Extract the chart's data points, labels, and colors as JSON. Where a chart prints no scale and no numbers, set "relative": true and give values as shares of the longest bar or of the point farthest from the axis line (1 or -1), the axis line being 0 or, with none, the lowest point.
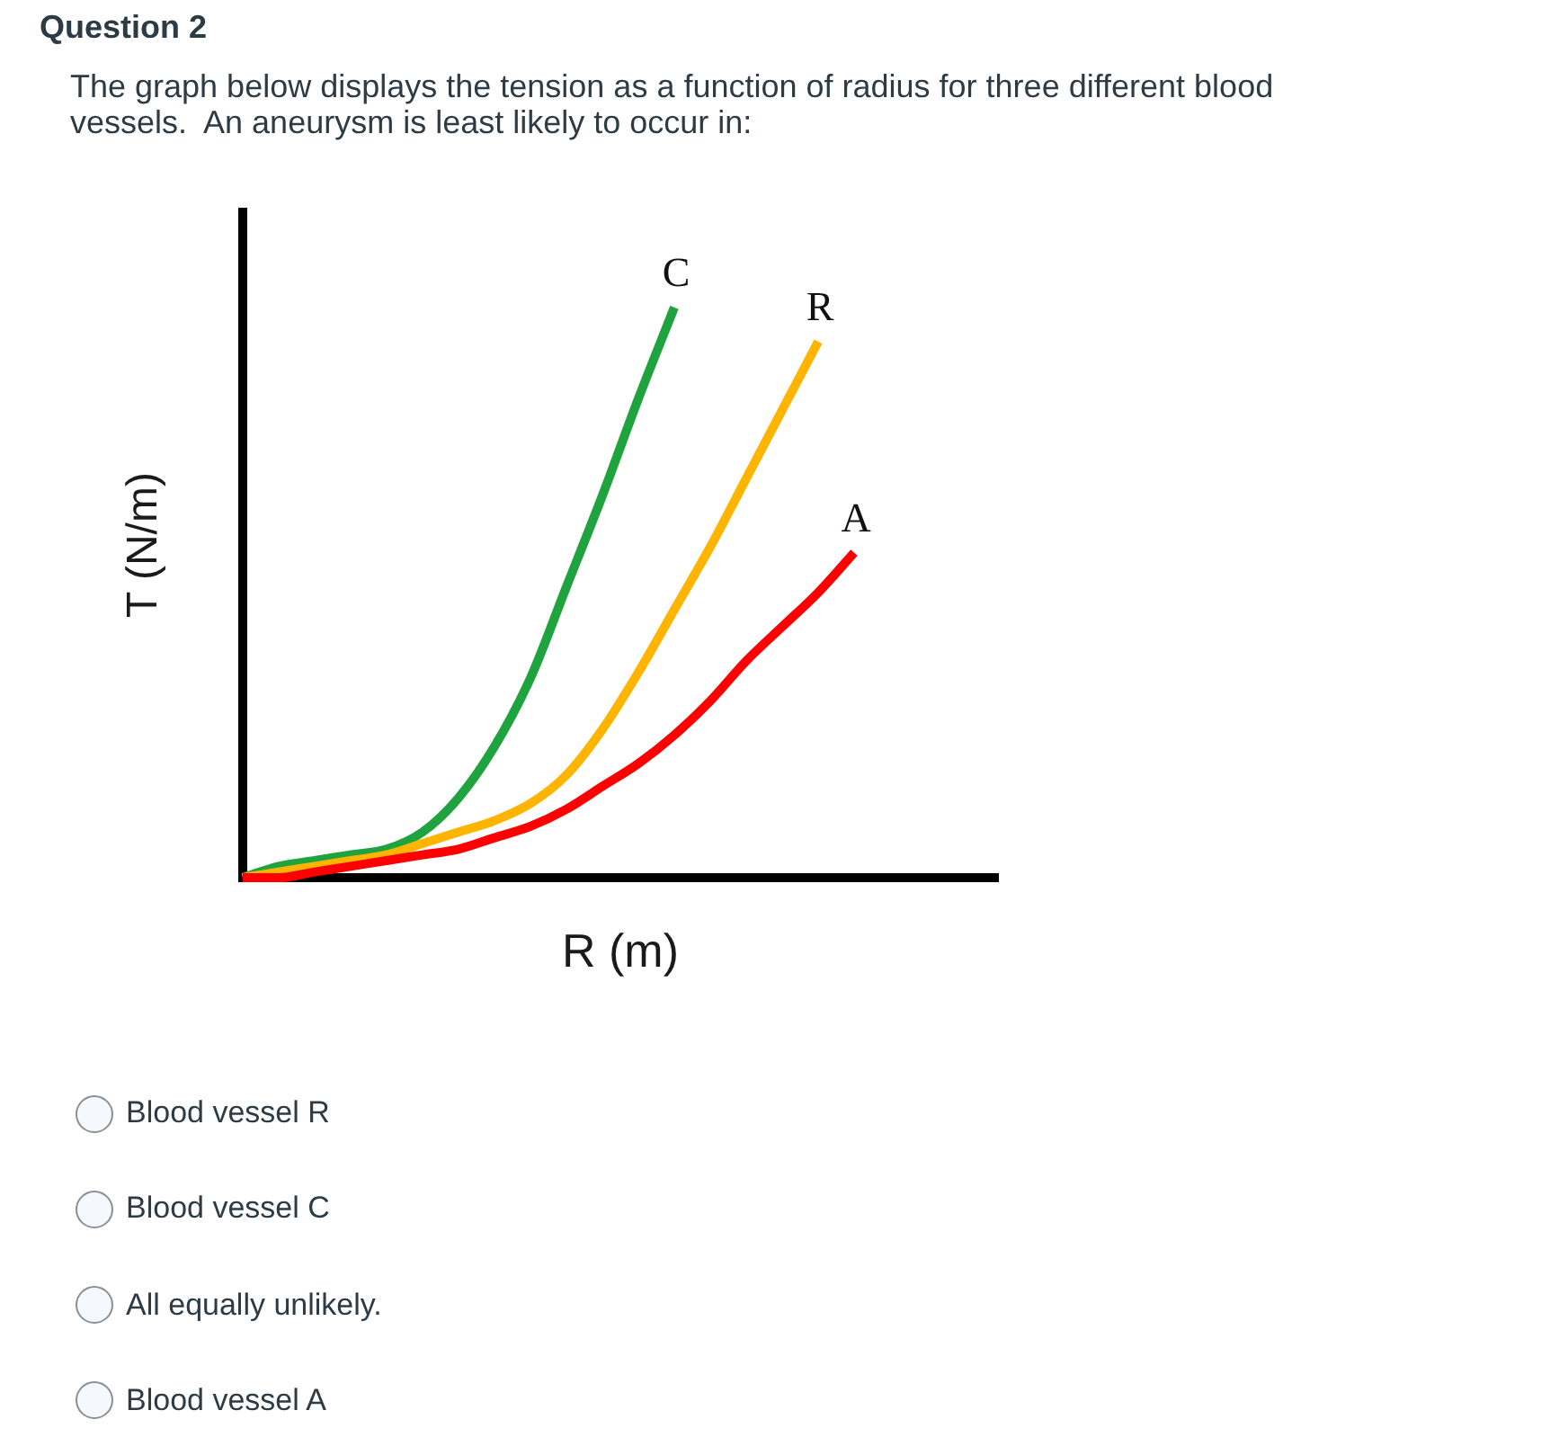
{
  "chart_data": {
    "type": "line",
    "title": "Question 2",
    "subtitle": "The graph below displays the tension as a function of radius for three different blood vessels.  An aneurysm is least likely to occur in:",
    "xlabel": "R (m)",
    "ylabel": "T (N/m)",
    "relative": true,
    "categories": [
      null,
      null,
      null,
      null,
      null,
      null,
      null,
      null,
      null,
      null,
      null,
      null,
      null,
      null,
      null,
      null,
      null,
      null,
      null,
      null,
      null,
      null
    ],
    "series": [
      {
        "name": "C",
        "color": "#1fa33f",
        "values": [
          0,
          0.02,
          0.03,
          0.04,
          0.05,
          0.08,
          0.14,
          0.23,
          0.35,
          0.51,
          0.67,
          0.84,
          1,
          null,
          null,
          null,
          null,
          null,
          null,
          null,
          null,
          null
        ]
      },
      {
        "name": "R",
        "color": "#ffb400",
        "values": [
          0,
          0.01,
          0.02,
          0.03,
          0.04,
          0.06,
          0.08,
          0.1,
          0.13,
          0.18,
          0.26,
          0.36,
          0.47,
          0.58,
          0.7,
          0.82,
          0.94,
          null,
          null,
          null,
          null,
          null
        ]
      },
      {
        "name": "A",
        "color": "#ff0000",
        "values": [
          0,
          0,
          0.01,
          0.02,
          0.03,
          0.04,
          0.05,
          0.07,
          0.09,
          0.12,
          0.16,
          0.2,
          0.25,
          0.31,
          0.38,
          0.44,
          0.5,
          0.57,
          null,
          null,
          null,
          null
        ]
      }
    ],
    "annotations": [
      "Blood vessel R",
      "Blood vessel C",
      "All equally unlikely.",
      "Blood vessel A"
    ]
  }
}
